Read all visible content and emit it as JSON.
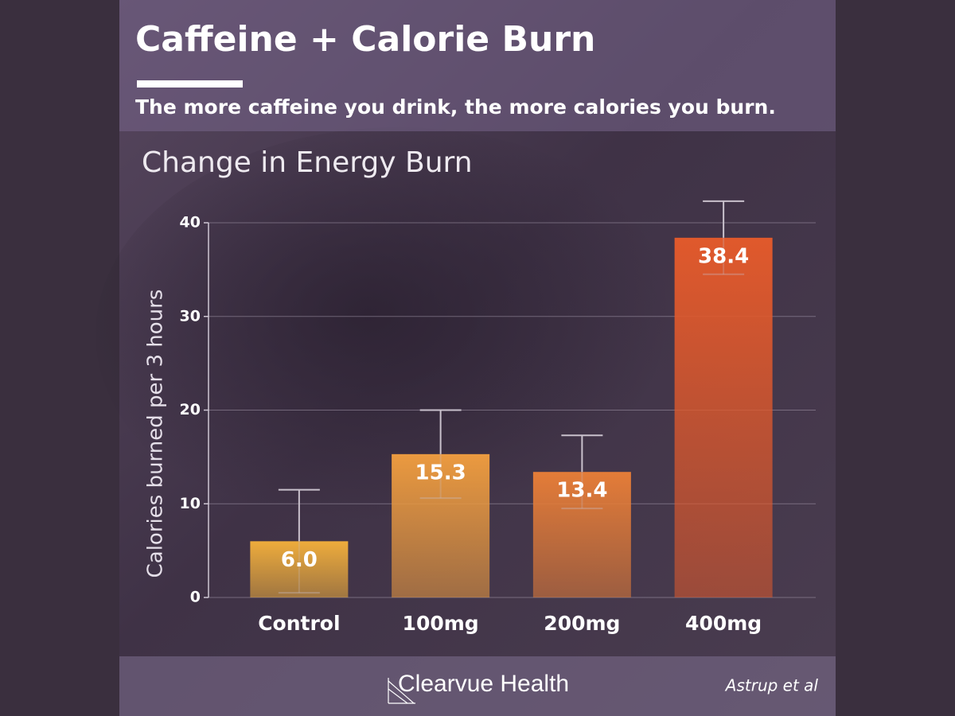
{
  "chart_data": {
    "type": "bar",
    "title": "Caffeine + Calorie Burn",
    "subtitle": "The more caffeine you drink, the more calories you burn.",
    "plot_title": "Change in Energy Burn",
    "ylabel": "Calories burned per 3 hours",
    "categories": [
      "Control",
      "100mg",
      "200mg",
      "400mg"
    ],
    "values": [
      6.0,
      15.3,
      13.4,
      38.4
    ],
    "value_labels": [
      "6.0",
      "15.3",
      "13.4",
      "38.4"
    ],
    "errors": [
      5.5,
      4.7,
      3.9,
      3.9
    ],
    "colors": [
      "#eeac3c",
      "#eb9a40",
      "#e47c38",
      "#e0592c"
    ],
    "ylim": [
      0,
      40
    ],
    "yticks": [
      0,
      10,
      20,
      30,
      40
    ],
    "grid": true,
    "brand": "Clearvue Health",
    "source": "Astrup et al"
  }
}
